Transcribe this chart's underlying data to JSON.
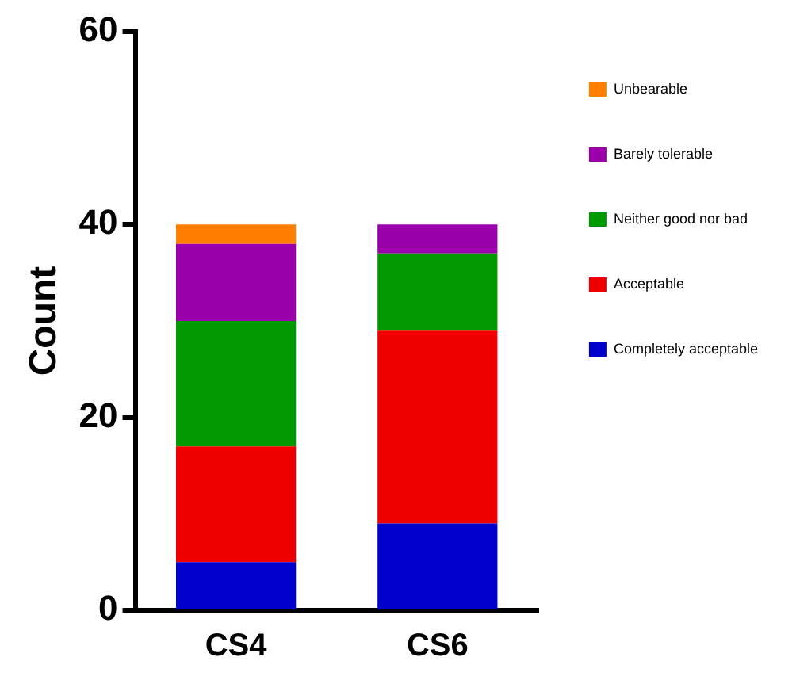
{
  "chart_data": {
    "type": "bar",
    "ylabel": "Count",
    "categories": [
      "CS4",
      "CS6"
    ],
    "stacked": true,
    "ylim": [
      0,
      60
    ],
    "yticks": [
      0,
      20,
      40,
      60
    ],
    "grid": false,
    "legend": "right",
    "series": [
      {
        "name": "Completely acceptable",
        "color": "#0000cc",
        "values": [
          5,
          9
        ]
      },
      {
        "name": "Acceptable",
        "color": "#ee0000",
        "values": [
          12,
          20
        ]
      },
      {
        "name": "Neither good nor bad",
        "color": "#009900",
        "values": [
          13,
          8
        ]
      },
      {
        "name": "Barely tolerable",
        "color": "#9900aa",
        "values": [
          8,
          3
        ]
      },
      {
        "name": "Unbearable",
        "color": "#ff8000",
        "values": [
          2,
          0
        ]
      }
    ]
  }
}
